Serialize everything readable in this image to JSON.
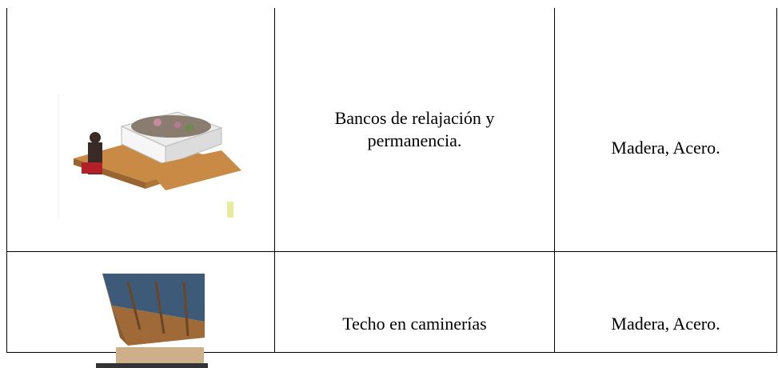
{
  "table": {
    "rows": [
      [
        "Bancos de relajación y permanencia.",
        "Madera, Acero."
      ],
      [
        "Techo en caminerías",
        "Madera, Acero."
      ]
    ]
  }
}
